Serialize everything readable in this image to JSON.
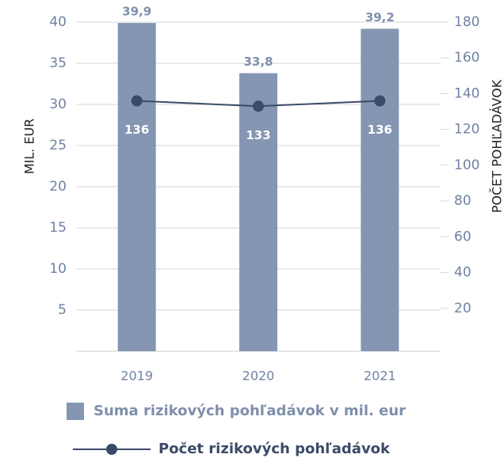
{
  "chart_data": {
    "type": "bar_line",
    "categories": [
      "2019",
      "2020",
      "2021"
    ],
    "y_label": "MIL. EUR",
    "y2_label": "POČET POHĽADÁVOK",
    "series": [
      {
        "name": "Suma rizikových pohľadávok v mil. eur",
        "type": "bar",
        "color": "#8496b2",
        "values": [
          39.9,
          33.8,
          39.2
        ],
        "value_labels": [
          "39,9",
          "33,8",
          "39,2"
        ]
      },
      {
        "name": "Počet rizikových pohľadávok",
        "type": "line",
        "axis": "y2",
        "color": "#3b4a66",
        "values": [
          136,
          133,
          136
        ]
      }
    ],
    "ylim": [
      0,
      40
    ],
    "yticks": [
      5,
      10,
      15,
      20,
      25,
      30,
      35,
      40
    ],
    "y2lim": [
      0,
      180
    ],
    "y2ticks": [
      20,
      40,
      60,
      80,
      100,
      120,
      140,
      160,
      180
    ],
    "grid": true
  }
}
